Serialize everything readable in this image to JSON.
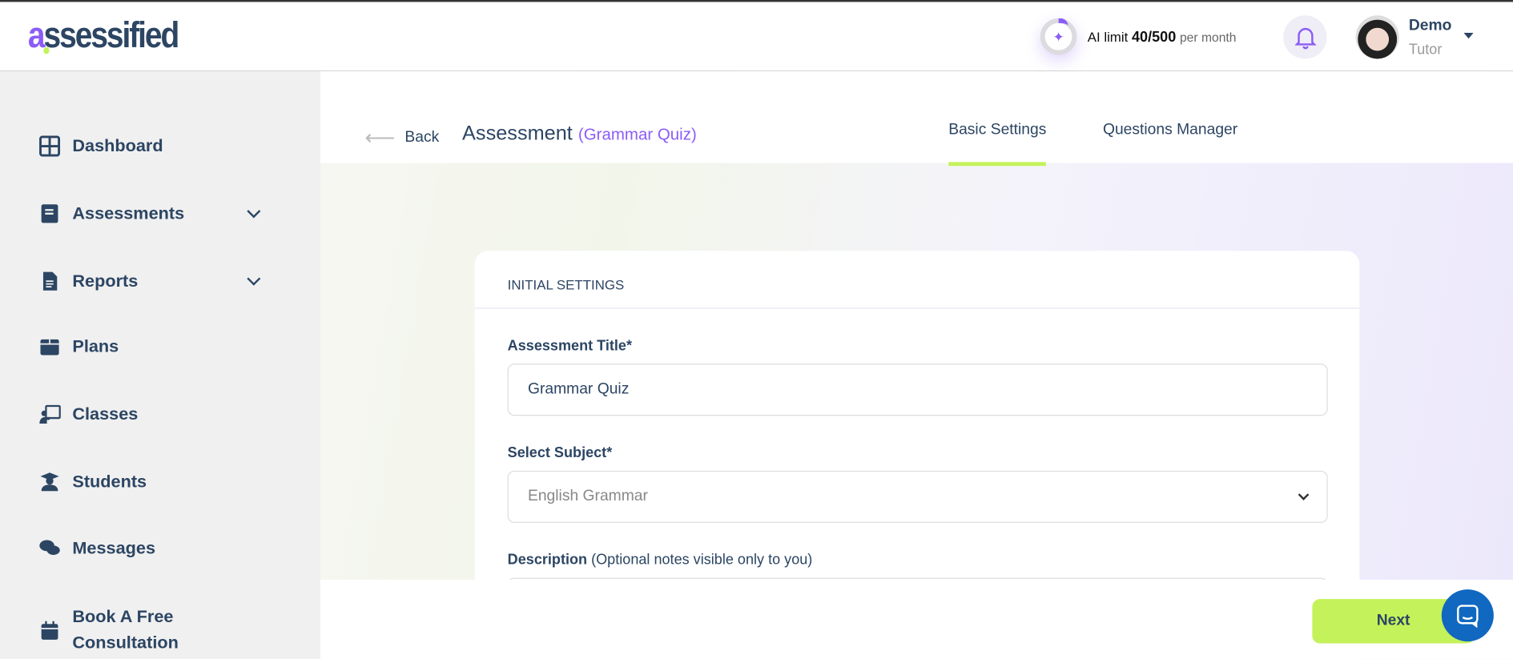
{
  "header": {
    "logo": "assessified",
    "ai_limit_label": "AI limit",
    "ai_limit_value": "40/500",
    "ai_limit_period": "per month",
    "ai_usage_fraction": 0.08,
    "user_name": "Demo",
    "user_role": "Tutor"
  },
  "sidebar": {
    "items": [
      {
        "label": "Dashboard",
        "icon": "grid-icon"
      },
      {
        "label": "Assessments",
        "icon": "book-icon"
      },
      {
        "label": "Reports",
        "icon": "file-icon"
      },
      {
        "label": "Plans",
        "icon": "box-icon"
      },
      {
        "label": "Classes",
        "icon": "presentation-icon"
      },
      {
        "label": "Students",
        "icon": "graduate-icon"
      },
      {
        "label": "Messages",
        "icon": "chat-icon"
      },
      {
        "label": "Book A Free Consultation",
        "icon": "calendar-icon"
      }
    ]
  },
  "page": {
    "back": "Back",
    "title": "Assessment",
    "subtitle": "(Grammar Quiz)",
    "tabs": [
      "Basic Settings",
      "Questions Manager"
    ]
  },
  "form": {
    "section": "INITIAL SETTINGS",
    "title_label": "Assessment Title*",
    "title_value": "Grammar Quiz",
    "subject_label": "Select Subject*",
    "subject_value": "English Grammar",
    "desc_label": "Description",
    "desc_hint": "(Optional notes visible only to you)"
  },
  "footer": {
    "next": "Next"
  },
  "colors": {
    "accent": "#8b5cf6",
    "lime": "#c4f25a",
    "navy": "#2c4563"
  }
}
